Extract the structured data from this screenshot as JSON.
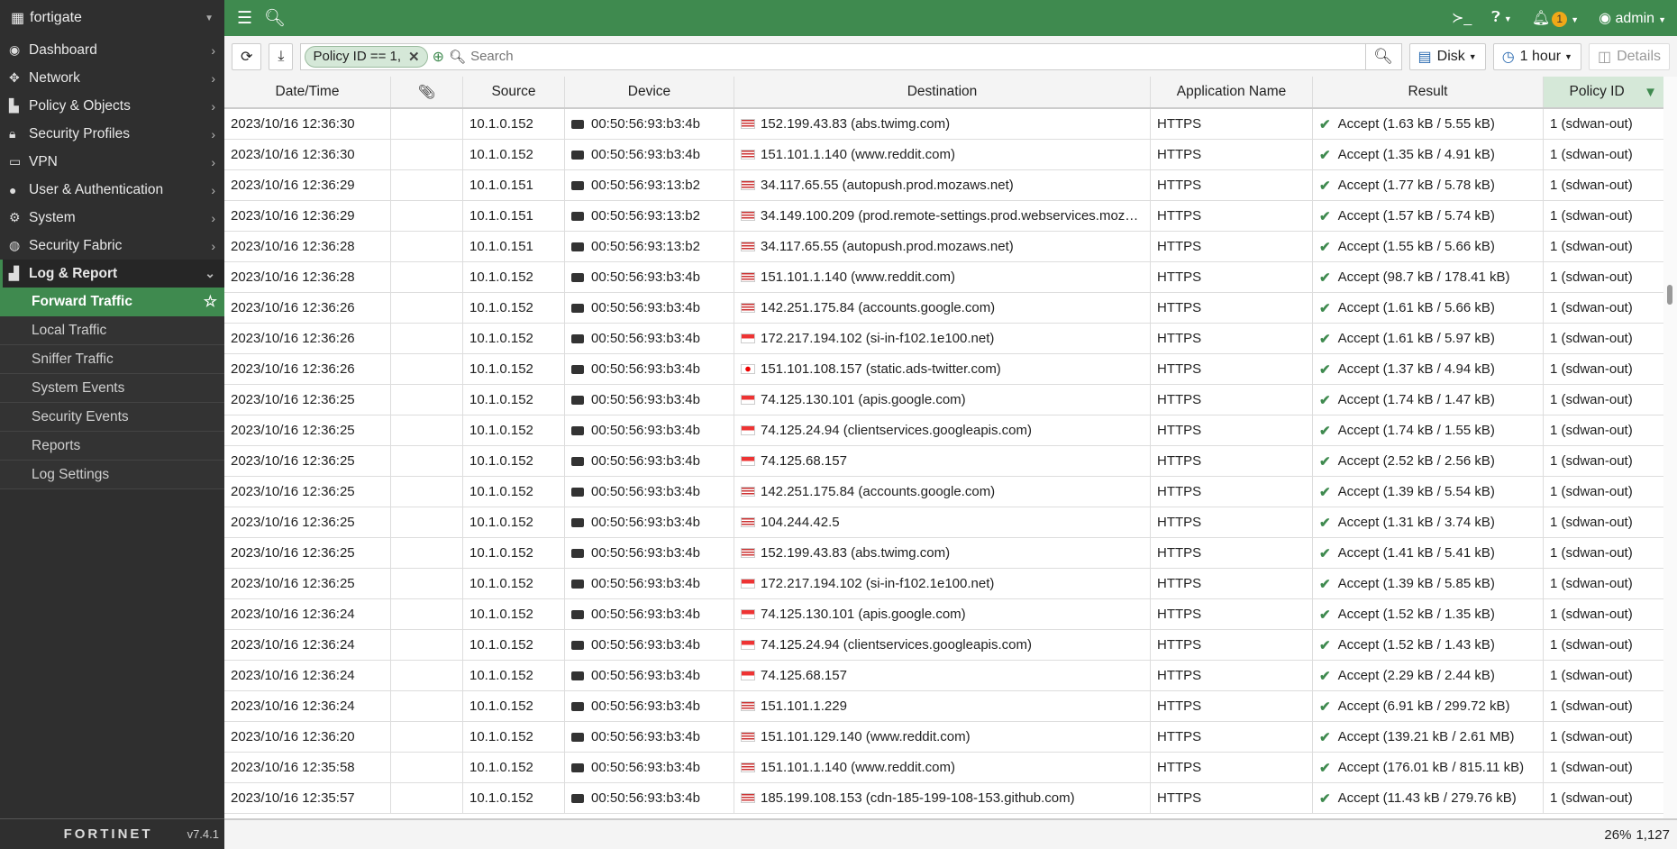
{
  "sidebar": {
    "device": "fortigate",
    "items": [
      {
        "label": "Dashboard",
        "icon": "dashboard-icon",
        "glyph": "◉"
      },
      {
        "label": "Network",
        "icon": "network-icon",
        "glyph": "✥"
      },
      {
        "label": "Policy & Objects",
        "icon": "policy-icon",
        "glyph": "▙"
      },
      {
        "label": "Security Profiles",
        "icon": "lock-icon",
        "glyph": "🔒︎"
      },
      {
        "label": "VPN",
        "icon": "vpn-icon",
        "glyph": "▭"
      },
      {
        "label": "User & Authentication",
        "icon": "user-icon",
        "glyph": "●"
      },
      {
        "label": "System",
        "icon": "gear-icon",
        "glyph": "⚙"
      },
      {
        "label": "Security Fabric",
        "icon": "fabric-icon",
        "glyph": "◍"
      }
    ],
    "open": {
      "label": "Log & Report",
      "icon": "chart-icon"
    },
    "sub": [
      "Forward Traffic",
      "Local Traffic",
      "Sniffer Traffic",
      "System Events",
      "Security Events",
      "Reports",
      "Log Settings"
    ],
    "brand": "FORTINET",
    "version": "v7.4.1"
  },
  "topbar": {
    "user": "admin",
    "notifications": "1"
  },
  "toolbar": {
    "filter_chip": "Policy ID == 1,",
    "search_placeholder": "Search",
    "disk": "Disk",
    "time": "1 hour",
    "details": "Details"
  },
  "table": {
    "columns": [
      "Date/Time",
      "",
      "Source",
      "Device",
      "Destination",
      "Application Name",
      "Result",
      "Policy ID"
    ],
    "rows": [
      [
        "2023/10/16 12:36:30",
        "10.1.0.152",
        "00:50:56:93:b3:4b",
        "us",
        "152.199.43.83 (abs.twimg.com)",
        "HTTPS",
        "Accept (1.63 kB / 5.55 kB)",
        "1 (sdwan-out)"
      ],
      [
        "2023/10/16 12:36:30",
        "10.1.0.152",
        "00:50:56:93:b3:4b",
        "us",
        "151.101.1.140 (www.reddit.com)",
        "HTTPS",
        "Accept (1.35 kB / 4.91 kB)",
        "1 (sdwan-out)"
      ],
      [
        "2023/10/16 12:36:29",
        "10.1.0.151",
        "00:50:56:93:13:b2",
        "us",
        "34.117.65.55 (autopush.prod.mozaws.net)",
        "HTTPS",
        "Accept (1.77 kB / 5.78 kB)",
        "1 (sdwan-out)"
      ],
      [
        "2023/10/16 12:36:29",
        "10.1.0.151",
        "00:50:56:93:13:b2",
        "us",
        "34.149.100.209 (prod.remote-settings.prod.webservices.mozg…",
        "HTTPS",
        "Accept (1.57 kB / 5.74 kB)",
        "1 (sdwan-out)"
      ],
      [
        "2023/10/16 12:36:28",
        "10.1.0.151",
        "00:50:56:93:13:b2",
        "us",
        "34.117.65.55 (autopush.prod.mozaws.net)",
        "HTTPS",
        "Accept (1.55 kB / 5.66 kB)",
        "1 (sdwan-out)"
      ],
      [
        "2023/10/16 12:36:28",
        "10.1.0.152",
        "00:50:56:93:b3:4b",
        "us",
        "151.101.1.140 (www.reddit.com)",
        "HTTPS",
        "Accept (98.7 kB / 178.41 kB)",
        "1 (sdwan-out)"
      ],
      [
        "2023/10/16 12:36:26",
        "10.1.0.152",
        "00:50:56:93:b3:4b",
        "us",
        "142.251.175.84 (accounts.google.com)",
        "HTTPS",
        "Accept (1.61 kB / 5.66 kB)",
        "1 (sdwan-out)"
      ],
      [
        "2023/10/16 12:36:26",
        "10.1.0.152",
        "00:50:56:93:b3:4b",
        "sg",
        "172.217.194.102 (si-in-f102.1e100.net)",
        "HTTPS",
        "Accept (1.61 kB / 5.97 kB)",
        "1 (sdwan-out)"
      ],
      [
        "2023/10/16 12:36:26",
        "10.1.0.152",
        "00:50:56:93:b3:4b",
        "jp",
        "151.101.108.157 (static.ads-twitter.com)",
        "HTTPS",
        "Accept (1.37 kB / 4.94 kB)",
        "1 (sdwan-out)"
      ],
      [
        "2023/10/16 12:36:25",
        "10.1.0.152",
        "00:50:56:93:b3:4b",
        "sg",
        "74.125.130.101 (apis.google.com)",
        "HTTPS",
        "Accept (1.74 kB / 1.47 kB)",
        "1 (sdwan-out)"
      ],
      [
        "2023/10/16 12:36:25",
        "10.1.0.152",
        "00:50:56:93:b3:4b",
        "sg",
        "74.125.24.94 (clientservices.googleapis.com)",
        "HTTPS",
        "Accept (1.74 kB / 1.55 kB)",
        "1 (sdwan-out)"
      ],
      [
        "2023/10/16 12:36:25",
        "10.1.0.152",
        "00:50:56:93:b3:4b",
        "sg",
        "74.125.68.157",
        "HTTPS",
        "Accept (2.52 kB / 2.56 kB)",
        "1 (sdwan-out)"
      ],
      [
        "2023/10/16 12:36:25",
        "10.1.0.152",
        "00:50:56:93:b3:4b",
        "us",
        "142.251.175.84 (accounts.google.com)",
        "HTTPS",
        "Accept (1.39 kB / 5.54 kB)",
        "1 (sdwan-out)"
      ],
      [
        "2023/10/16 12:36:25",
        "10.1.0.152",
        "00:50:56:93:b3:4b",
        "us",
        "104.244.42.5",
        "HTTPS",
        "Accept (1.31 kB / 3.74 kB)",
        "1 (sdwan-out)"
      ],
      [
        "2023/10/16 12:36:25",
        "10.1.0.152",
        "00:50:56:93:b3:4b",
        "us",
        "152.199.43.83 (abs.twimg.com)",
        "HTTPS",
        "Accept (1.41 kB / 5.41 kB)",
        "1 (sdwan-out)"
      ],
      [
        "2023/10/16 12:36:25",
        "10.1.0.152",
        "00:50:56:93:b3:4b",
        "sg",
        "172.217.194.102 (si-in-f102.1e100.net)",
        "HTTPS",
        "Accept (1.39 kB / 5.85 kB)",
        "1 (sdwan-out)"
      ],
      [
        "2023/10/16 12:36:24",
        "10.1.0.152",
        "00:50:56:93:b3:4b",
        "sg",
        "74.125.130.101 (apis.google.com)",
        "HTTPS",
        "Accept (1.52 kB / 1.35 kB)",
        "1 (sdwan-out)"
      ],
      [
        "2023/10/16 12:36:24",
        "10.1.0.152",
        "00:50:56:93:b3:4b",
        "sg",
        "74.125.24.94 (clientservices.googleapis.com)",
        "HTTPS",
        "Accept (1.52 kB / 1.43 kB)",
        "1 (sdwan-out)"
      ],
      [
        "2023/10/16 12:36:24",
        "10.1.0.152",
        "00:50:56:93:b3:4b",
        "sg",
        "74.125.68.157",
        "HTTPS",
        "Accept (2.29 kB / 2.44 kB)",
        "1 (sdwan-out)"
      ],
      [
        "2023/10/16 12:36:24",
        "10.1.0.152",
        "00:50:56:93:b3:4b",
        "us",
        "151.101.1.229",
        "HTTPS",
        "Accept (6.91 kB / 299.72 kB)",
        "1 (sdwan-out)"
      ],
      [
        "2023/10/16 12:36:20",
        "10.1.0.152",
        "00:50:56:93:b3:4b",
        "us",
        "151.101.129.140 (www.reddit.com)",
        "HTTPS",
        "Accept (139.21 kB / 2.61 MB)",
        "1 (sdwan-out)"
      ],
      [
        "2023/10/16 12:35:58",
        "10.1.0.152",
        "00:50:56:93:b3:4b",
        "us",
        "151.101.1.140 (www.reddit.com)",
        "HTTPS",
        "Accept (176.01 kB / 815.11 kB)",
        "1 (sdwan-out)"
      ],
      [
        "2023/10/16 12:35:57",
        "10.1.0.152",
        "00:50:56:93:b3:4b",
        "us",
        "185.199.108.153 (cdn-185-199-108-153.github.com)",
        "HTTPS",
        "Accept (11.43 kB / 279.76 kB)",
        "1 (sdwan-out)"
      ]
    ]
  },
  "footer": {
    "progress": "26%",
    "count": "1,127"
  },
  "colors": {
    "accent": "#3f8a4f",
    "sidebar": "#2f2f2f",
    "badge": "#f0a818"
  }
}
